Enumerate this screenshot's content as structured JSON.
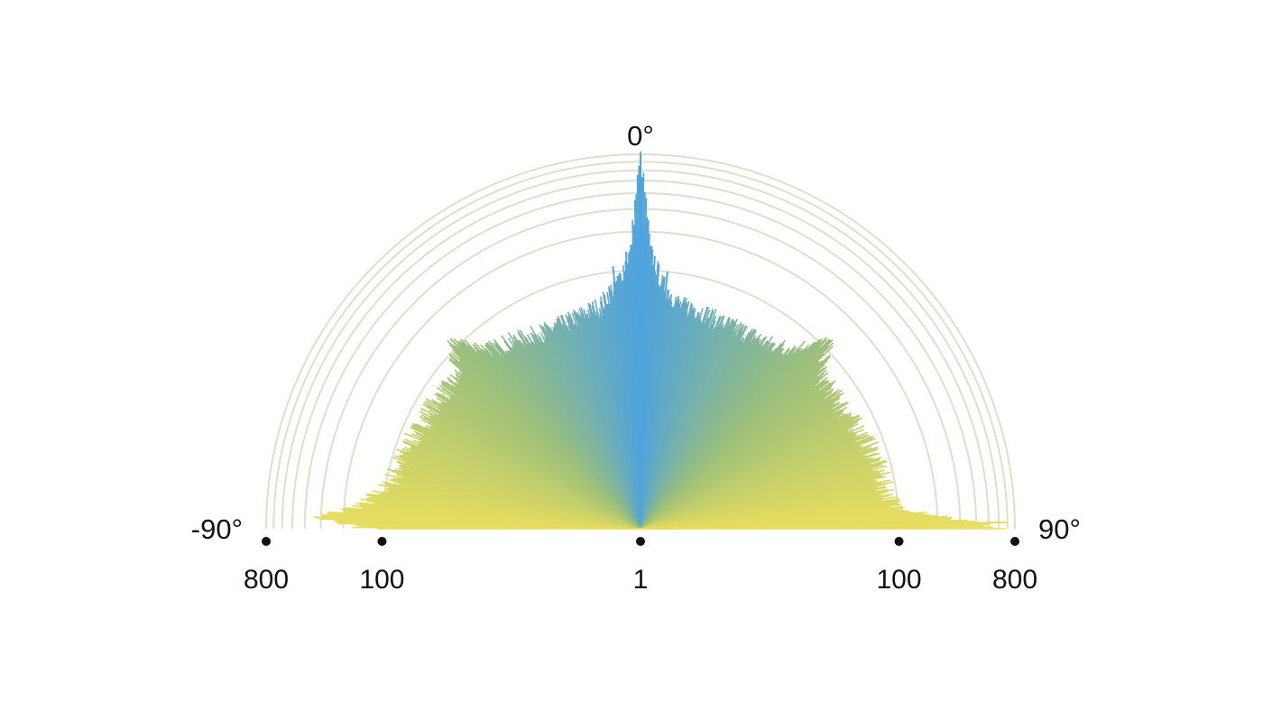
{
  "chart_data": {
    "type": "polar-bar",
    "angle_range_deg": [
      -90,
      90
    ],
    "angle_labels": [
      {
        "deg": -90,
        "text": "-90°"
      },
      {
        "deg": 0,
        "text": "0°"
      },
      {
        "deg": 90,
        "text": "90°"
      }
    ],
    "radial_scale": "log",
    "radial_range": [
      1,
      800
    ],
    "radial_tick_labels": [
      {
        "value": 800,
        "side": "left",
        "text": "800"
      },
      {
        "value": 100,
        "side": "left",
        "text": "100"
      },
      {
        "value": 1,
        "side": "center",
        "text": "1"
      },
      {
        "value": 100,
        "side": "right",
        "text": "100"
      },
      {
        "value": 800,
        "side": "right",
        "text": "800"
      }
    ],
    "gridline_rings": [
      50,
      100,
      200,
      300,
      400,
      500,
      600,
      700,
      800
    ],
    "colors": {
      "center": "#4fa3dd",
      "middle": "#9cbf7c",
      "edge": "#e8de5e",
      "grid": "#dde0cc",
      "tick_dot": "#111111"
    },
    "profile_deg_vs_value": [
      [
        -90,
        140
      ],
      [
        -88,
        330
      ],
      [
        -85,
        150
      ],
      [
        -80,
        100
      ],
      [
        -75,
        92
      ],
      [
        -70,
        85
      ],
      [
        -65,
        80
      ],
      [
        -60,
        80
      ],
      [
        -55,
        75
      ],
      [
        -50,
        72
      ],
      [
        -45,
        120
      ],
      [
        -40,
        68
      ],
      [
        -35,
        62
      ],
      [
        -30,
        55
      ],
      [
        -25,
        52
      ],
      [
        -20,
        52
      ],
      [
        -15,
        55
      ],
      [
        -10,
        60
      ],
      [
        -5,
        90
      ],
      [
        -2,
        150
      ],
      [
        0,
        800
      ],
      [
        2,
        150
      ],
      [
        5,
        85
      ],
      [
        10,
        60
      ],
      [
        15,
        60
      ],
      [
        20,
        55
      ],
      [
        25,
        55
      ],
      [
        30,
        56
      ],
      [
        35,
        58
      ],
      [
        40,
        70
      ],
      [
        45,
        118
      ],
      [
        50,
        70
      ],
      [
        55,
        70
      ],
      [
        60,
        72
      ],
      [
        65,
        75
      ],
      [
        70,
        82
      ],
      [
        75,
        85
      ],
      [
        80,
        88
      ],
      [
        85,
        100
      ],
      [
        88,
        260
      ],
      [
        90,
        700
      ]
    ],
    "spikes_deg_vs_value": [
      [
        0,
        800
      ],
      [
        -1,
        200
      ],
      [
        1,
        200
      ],
      [
        -3,
        140
      ],
      [
        3,
        130
      ],
      [
        -6,
        110
      ],
      [
        6,
        100
      ],
      [
        -45,
        120
      ],
      [
        45,
        118
      ],
      [
        -88,
        330
      ],
      [
        88,
        260
      ],
      [
        -89,
        150
      ],
      [
        89,
        700
      ]
    ]
  }
}
